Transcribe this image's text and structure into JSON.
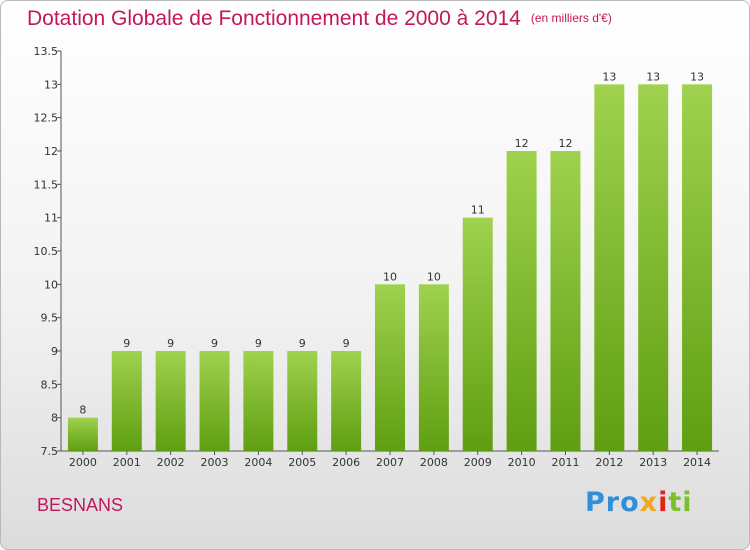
{
  "title": "Dotation Globale de Fonctionnement de 2000 à 2014",
  "unit": "(en milliers d'€)",
  "commune": "BESNANS",
  "logo": {
    "text": "Proxiti",
    "parts": [
      "Pro",
      "x",
      "i",
      "ti"
    ]
  },
  "colors": {
    "title": "#c2185b",
    "bar_top": "#9fd24e",
    "bar_bottom": "#5f9e12"
  },
  "chart_data": {
    "type": "bar",
    "categories": [
      "2000",
      "2001",
      "2002",
      "2003",
      "2004",
      "2005",
      "2006",
      "2007",
      "2008",
      "2009",
      "2010",
      "2011",
      "2012",
      "2013",
      "2014"
    ],
    "values": [
      8,
      9,
      9,
      9,
      9,
      9,
      9,
      10,
      10,
      11,
      12,
      12,
      13,
      13,
      13
    ],
    "data_labels": [
      "8",
      "9",
      "9",
      "9",
      "9",
      "9",
      "9",
      "10",
      "10",
      "11",
      "12",
      "12",
      "13",
      "13",
      "13"
    ],
    "ylim": [
      7.5,
      13.5
    ],
    "yticks": [
      "7.5",
      "8",
      "8.5",
      "9",
      "9.5",
      "10",
      "10.5",
      "11",
      "11.5",
      "12",
      "12.5",
      "13",
      "13.5"
    ],
    "grid": false,
    "legend": "none",
    "xlabel": "",
    "ylabel": ""
  }
}
